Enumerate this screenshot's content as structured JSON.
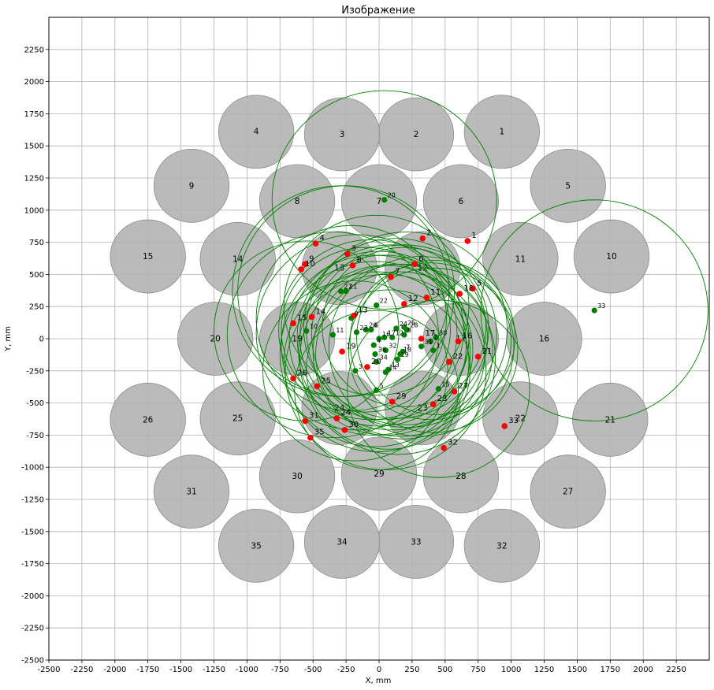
{
  "chart_data": {
    "type": "scatter",
    "title": "Изображение",
    "xlabel": "X, mm",
    "ylabel": "Y, mm",
    "xlim": [
      -2500,
      2500
    ],
    "ylim": [
      -2500,
      2500
    ],
    "grid": true,
    "x_ticks": [
      -2500,
      -2250,
      -2000,
      -1750,
      -1500,
      -1250,
      -1000,
      -750,
      -500,
      -250,
      0,
      250,
      500,
      750,
      1000,
      1250,
      1500,
      1750,
      2000,
      2250
    ],
    "y_ticks": [
      -2500,
      -2250,
      -2000,
      -1750,
      -1500,
      -1250,
      -1000,
      -750,
      -500,
      -250,
      0,
      250,
      500,
      750,
      1000,
      1250,
      1500,
      1750,
      2000,
      2250
    ],
    "colors": {
      "disc_fill": "#b3b3b3",
      "disc_edge": "#8c8c8c",
      "red_points": "#ff0000",
      "green_points": "#008000",
      "circles": "#008000",
      "grid": "#b0b0b0"
    },
    "discs": [
      {
        "label": "1",
        "x": 930,
        "y": 1610,
        "r": 285
      },
      {
        "label": "2",
        "x": 280,
        "y": 1590,
        "r": 285
      },
      {
        "label": "3",
        "x": -280,
        "y": 1590,
        "r": 285
      },
      {
        "label": "4",
        "x": -930,
        "y": 1610,
        "r": 285
      },
      {
        "label": "5",
        "x": 1430,
        "y": 1190,
        "r": 285
      },
      {
        "label": "6",
        "x": 620,
        "y": 1070,
        "r": 285
      },
      {
        "label": "7",
        "x": 0,
        "y": 1070,
        "r": 285
      },
      {
        "label": "8",
        "x": -620,
        "y": 1070,
        "r": 285
      },
      {
        "label": "9",
        "x": -1420,
        "y": 1190,
        "r": 285
      },
      {
        "label": "10",
        "x": 1760,
        "y": 640,
        "r": 285
      },
      {
        "label": "11",
        "x": 1070,
        "y": 620,
        "r": 285
      },
      {
        "label": "12",
        "x": 330,
        "y": 550,
        "r": 285
      },
      {
        "label": "13",
        "x": -300,
        "y": 550,
        "r": 285
      },
      {
        "label": "14",
        "x": -1070,
        "y": 620,
        "r": 285
      },
      {
        "label": "15",
        "x": -1750,
        "y": 640,
        "r": 285
      },
      {
        "label": "16",
        "x": 1250,
        "y": 0,
        "r": 285
      },
      {
        "label": "17",
        "x": 620,
        "y": 0,
        "r": 285
      },
      {
        "label": "19",
        "x": -620,
        "y": 0,
        "r": 285
      },
      {
        "label": "20",
        "x": -1240,
        "y": 0,
        "r": 285
      },
      {
        "label": "21",
        "x": 1750,
        "y": -630,
        "r": 285
      },
      {
        "label": "22",
        "x": 1070,
        "y": -620,
        "r": 285
      },
      {
        "label": "23",
        "x": 330,
        "y": -540,
        "r": 285
      },
      {
        "label": "24",
        "x": -300,
        "y": -540,
        "r": 285
      },
      {
        "label": "25",
        "x": -1070,
        "y": -620,
        "r": 285
      },
      {
        "label": "26",
        "x": -1750,
        "y": -630,
        "r": 285
      },
      {
        "label": "27",
        "x": 1430,
        "y": -1190,
        "r": 285
      },
      {
        "label": "28",
        "x": 620,
        "y": -1070,
        "r": 285
      },
      {
        "label": "29",
        "x": 0,
        "y": -1050,
        "r": 285
      },
      {
        "label": "30",
        "x": -620,
        "y": -1070,
        "r": 285
      },
      {
        "label": "31",
        "x": -1420,
        "y": -1190,
        "r": 285
      },
      {
        "label": "32",
        "x": 930,
        "y": -1610,
        "r": 285
      },
      {
        "label": "33",
        "x": 280,
        "y": -1580,
        "r": 285
      },
      {
        "label": "34",
        "x": -280,
        "y": -1580,
        "r": 285
      },
      {
        "label": "35",
        "x": -930,
        "y": -1610,
        "r": 285
      }
    ],
    "red_points": [
      {
        "label": "1",
        "x": 670,
        "y": 760
      },
      {
        "label": "2",
        "x": 330,
        "y": 780
      },
      {
        "label": "3",
        "x": -240,
        "y": 660
      },
      {
        "label": "4",
        "x": -480,
        "y": 740
      },
      {
        "label": "5",
        "x": 710,
        "y": 390
      },
      {
        "label": "6",
        "x": 270,
        "y": 580
      },
      {
        "label": "7",
        "x": 90,
        "y": 480
      },
      {
        "label": "8",
        "x": -200,
        "y": 570
      },
      {
        "label": "9",
        "x": -560,
        "y": 580
      },
      {
        "label": "10",
        "x": -590,
        "y": 540
      },
      {
        "label": "11",
        "x": 360,
        "y": 320
      },
      {
        "label": "12",
        "x": 190,
        "y": 270
      },
      {
        "label": "13",
        "x": -190,
        "y": 180
      },
      {
        "label": "14",
        "x": -510,
        "y": 170
      },
      {
        "label": "15",
        "x": -650,
        "y": 120
      },
      {
        "label": "16",
        "x": 600,
        "y": -20
      },
      {
        "label": "17",
        "x": 320,
        "y": 0
      },
      {
        "label": "18",
        "x": 610,
        "y": 350
      },
      {
        "label": "19",
        "x": -280,
        "y": -100
      },
      {
        "label": "20",
        "x": -90,
        "y": -220
      },
      {
        "label": "21",
        "x": 750,
        "y": -140
      },
      {
        "label": "22",
        "x": 530,
        "y": -180
      },
      {
        "label": "23",
        "x": 410,
        "y": -510
      },
      {
        "label": "24",
        "x": -320,
        "y": -620
      },
      {
        "label": "25",
        "x": -470,
        "y": -370
      },
      {
        "label": "26",
        "x": -650,
        "y": -310
      },
      {
        "label": "27",
        "x": 570,
        "y": -410
      },
      {
        "label": "29",
        "x": 100,
        "y": -490
      },
      {
        "label": "30",
        "x": -260,
        "y": -710
      },
      {
        "label": "31",
        "x": -560,
        "y": -640
      },
      {
        "label": "32",
        "x": 490,
        "y": -850
      },
      {
        "label": "33",
        "x": 950,
        "y": -680
      },
      {
        "label": "35",
        "x": -520,
        "y": -770
      }
    ],
    "green_points": [
      {
        "label": "20",
        "x": 40,
        "y": 1080
      },
      {
        "label": "21",
        "x": -250,
        "y": 370
      },
      {
        "label": "27",
        "x": -290,
        "y": 370
      },
      {
        "label": "22",
        "x": -20,
        "y": 260
      },
      {
        "label": "9",
        "x": -210,
        "y": 160
      },
      {
        "label": "10",
        "x": -550,
        "y": 60
      },
      {
        "label": "11",
        "x": -350,
        "y": 30
      },
      {
        "label": "23",
        "x": -170,
        "y": 50
      },
      {
        "label": "26",
        "x": -100,
        "y": 70
      },
      {
        "label": "6",
        "x": -60,
        "y": 70
      },
      {
        "label": "24",
        "x": 130,
        "y": 80
      },
      {
        "label": "25",
        "x": 190,
        "y": 90
      },
      {
        "label": "28",
        "x": 210,
        "y": 70
      },
      {
        "label": "17",
        "x": 40,
        "y": 10
      },
      {
        "label": "12",
        "x": 100,
        "y": 10
      },
      {
        "label": "16",
        "x": 0,
        "y": 0
      },
      {
        "label": "8",
        "x": 190,
        "y": 30
      },
      {
        "label": "2",
        "x": 390,
        "y": -20
      },
      {
        "label": "31",
        "x": 320,
        "y": -60
      },
      {
        "label": "30",
        "x": 430,
        "y": 10
      },
      {
        "label": "1",
        "x": 410,
        "y": -90
      },
      {
        "label": "4",
        "x": -40,
        "y": -50
      },
      {
        "label": "32",
        "x": 50,
        "y": -90
      },
      {
        "label": "36",
        "x": -30,
        "y": -120
      },
      {
        "label": "18",
        "x": 160,
        "y": -120
      },
      {
        "label": "7",
        "x": 180,
        "y": -100
      },
      {
        "label": "34",
        "x": -20,
        "y": -180
      },
      {
        "label": "19",
        "x": 140,
        "y": -160
      },
      {
        "label": "13",
        "x": 70,
        "y": -240
      },
      {
        "label": "14",
        "x": 50,
        "y": -260
      },
      {
        "label": "3",
        "x": -180,
        "y": -250
      },
      {
        "label": "5",
        "x": -20,
        "y": -400
      },
      {
        "label": "15",
        "x": 450,
        "y": -390
      },
      {
        "label": "33",
        "x": 1630,
        "y": 220
      }
    ],
    "circles": [
      {
        "x": 40,
        "y": 1080,
        "r": 850
      },
      {
        "x": 1630,
        "y": 220,
        "r": 860
      },
      {
        "x": -250,
        "y": 370,
        "r": 820
      },
      {
        "x": -290,
        "y": 370,
        "r": 820
      },
      {
        "x": -20,
        "y": 260,
        "r": 700
      },
      {
        "x": -210,
        "y": 160,
        "r": 720
      },
      {
        "x": -550,
        "y": 60,
        "r": 700
      },
      {
        "x": -350,
        "y": 30,
        "r": 800
      },
      {
        "x": -170,
        "y": 50,
        "r": 760
      },
      {
        "x": -100,
        "y": 70,
        "r": 640
      },
      {
        "x": -60,
        "y": 70,
        "r": 700
      },
      {
        "x": 130,
        "y": 80,
        "r": 700
      },
      {
        "x": 190,
        "y": 90,
        "r": 620
      },
      {
        "x": 210,
        "y": 70,
        "r": 760
      },
      {
        "x": 40,
        "y": 10,
        "r": 640
      },
      {
        "x": 100,
        "y": 10,
        "r": 720
      },
      {
        "x": 0,
        "y": 0,
        "r": 680
      },
      {
        "x": 190,
        "y": 30,
        "r": 700
      },
      {
        "x": 390,
        "y": -20,
        "r": 610
      },
      {
        "x": 320,
        "y": -60,
        "r": 700
      },
      {
        "x": 430,
        "y": 10,
        "r": 600
      },
      {
        "x": 410,
        "y": -90,
        "r": 640
      },
      {
        "x": -40,
        "y": -50,
        "r": 700
      },
      {
        "x": 50,
        "y": -90,
        "r": 660
      },
      {
        "x": -30,
        "y": -120,
        "r": 720
      },
      {
        "x": 160,
        "y": -120,
        "r": 640
      },
      {
        "x": 180,
        "y": -100,
        "r": 680
      },
      {
        "x": -20,
        "y": -180,
        "r": 700
      },
      {
        "x": 140,
        "y": -160,
        "r": 740
      },
      {
        "x": 70,
        "y": -240,
        "r": 620
      },
      {
        "x": 50,
        "y": -260,
        "r": 760
      },
      {
        "x": -180,
        "y": -250,
        "r": 700
      },
      {
        "x": -20,
        "y": -400,
        "r": 620
      },
      {
        "x": 450,
        "y": -390,
        "r": 690
      }
    ]
  }
}
